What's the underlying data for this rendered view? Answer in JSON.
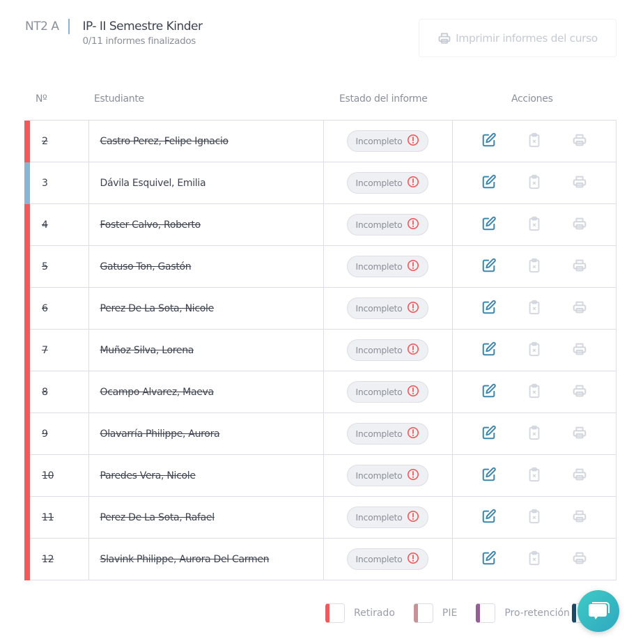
{
  "header": {
    "course": "NT2 A",
    "title": "IP- II Semestre Kinder",
    "subtitle": "0/11 informes finalizados",
    "print_all_label": "Imprimir informes del curso"
  },
  "columns": {
    "num": "Nº",
    "student": "Estudiante",
    "state": "Estado del informe",
    "actions": "Acciones"
  },
  "colors": {
    "retirado": "#f05a5a",
    "pie": "#c49498",
    "pro_retencion": "#955f96",
    "default": "#8ab4cf",
    "edit": "#3b86ad",
    "disabled": "#d3d6de"
  },
  "rows": [
    {
      "num": "2",
      "name": "Castro Perez, Felipe Ignacio",
      "state": "Incompleto",
      "status": "retirado"
    },
    {
      "num": "3",
      "name": "Dávila Esquivel, Emilia",
      "state": "Incompleto",
      "status": "default"
    },
    {
      "num": "4",
      "name": "Foster Calvo, Roberto",
      "state": "Incompleto",
      "status": "retirado"
    },
    {
      "num": "5",
      "name": "Gatuso Ton, Gastón",
      "state": "Incompleto",
      "status": "retirado"
    },
    {
      "num": "6",
      "name": "Perez De La Sota, Nicole",
      "state": "Incompleto",
      "status": "retirado"
    },
    {
      "num": "7",
      "name": "Muñoz Silva, Lorena",
      "state": "Incompleto",
      "status": "retirado"
    },
    {
      "num": "8",
      "name": "Ocampo Alvarez, Maeva",
      "state": "Incompleto",
      "status": "retirado"
    },
    {
      "num": "9",
      "name": "Olavarría Philippe, Aurora",
      "state": "Incompleto",
      "status": "retirado"
    },
    {
      "num": "10",
      "name": "Paredes Vera, Nicole",
      "state": "Incompleto",
      "status": "retirado"
    },
    {
      "num": "11",
      "name": "Perez De La Sota, Rafael",
      "state": "Incompleto",
      "status": "retirado"
    },
    {
      "num": "12",
      "name": "Slavink Philippe, Aurora Del Carmen",
      "state": "Incompleto",
      "status": "retirado"
    }
  ],
  "legend": [
    {
      "label": "Retirado",
      "color": "#f05a5a"
    },
    {
      "label": "PIE",
      "color": "#c49498"
    },
    {
      "label": "Pro-retención",
      "color": "#955f96"
    }
  ],
  "extra_legend_color": "#1b4a66"
}
